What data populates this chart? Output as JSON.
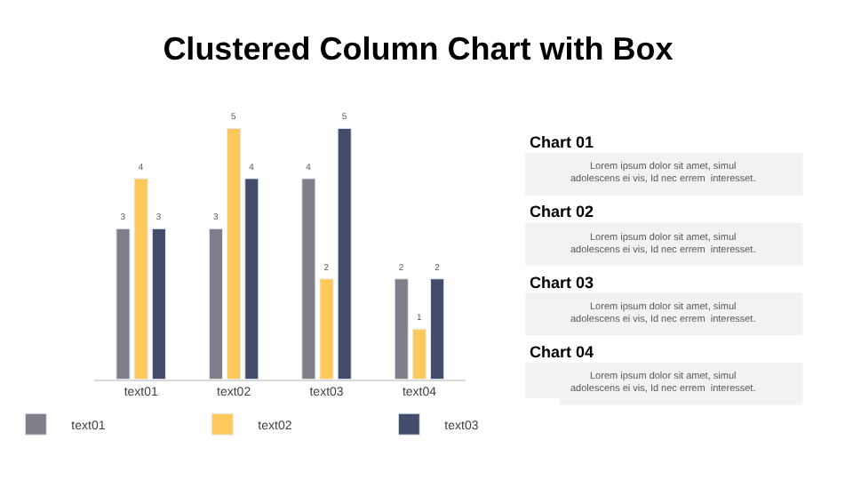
{
  "chart_data": [
    {
      "type": "bar",
      "title": "Clustered Column Chart with Box",
      "categories": [
        "text01",
        "text02",
        "text03",
        "text04"
      ],
      "series": [
        {
          "name": "text01",
          "color": "#7f7f8a",
          "values": [
            3,
            3,
            4,
            2
          ]
        },
        {
          "name": "text02",
          "color": "#fec85a",
          "values": [
            4,
            5,
            2,
            1
          ]
        },
        {
          "name": "text03",
          "color": "#434d6b",
          "values": [
            3,
            4,
            5,
            2
          ]
        }
      ],
      "data_labels": true,
      "legend": "bottom"
    },
    {
      "type": "other",
      "annotations": [
        "Chart 01",
        "Lorem ipsum dolor sit amet, simul\nadolescens ei vis, Id nec errem  interesset.",
        "Chart 02",
        "Lorem ipsum dolor sit amet, simul\nadolescens ei vis, Id nec errem  interesset.",
        "Chart 03",
        "Lorem ipsum dolor sit amet, simul\nadolescens ei vis, Id nec errem  interesset.",
        "Chart 04",
        "Lorem ipsum dolor sit amet, simul\nadolescens ei vis, Id nec errem  interesset."
      ]
    }
  ]
}
